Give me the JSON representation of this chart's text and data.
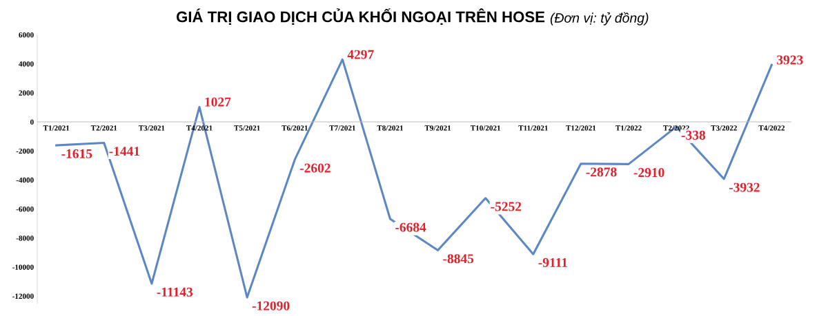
{
  "chart_data": {
    "type": "line",
    "title": "GIÁ TRỊ GIAO DỊCH CỦA KHỐI NGOẠI TRÊN HOSE",
    "subtitle": "(Đơn vị: tỷ đồng)",
    "categories": [
      "T1/2021",
      "T2/2021",
      "T3/2021",
      "T4/2021",
      "T5/2021",
      "T6/2021",
      "T7/2021",
      "T8/2021",
      "T9/2021",
      "T10/2021",
      "T11/2021",
      "T12/2021",
      "T1/2022",
      "T2/2022",
      "T3/2022",
      "T4/2022"
    ],
    "series": [
      {
        "color": "#5b87c5",
        "values": [
          -1615,
          -1441,
          -11143,
          1027,
          -12090,
          -2602,
          4297,
          -6684,
          -8845,
          -5252,
          -9111,
          -2878,
          -2910,
          -338,
          -3932,
          3923
        ]
      }
    ],
    "ylim": [
      -12500,
      6000
    ],
    "yticks": [
      -12000,
      -10000,
      -8000,
      -6000,
      -4000,
      -2000,
      0,
      2000,
      4000,
      6000
    ],
    "data_labels": true,
    "grid": false,
    "legend": false,
    "marker": "none",
    "line_style": "solid"
  }
}
